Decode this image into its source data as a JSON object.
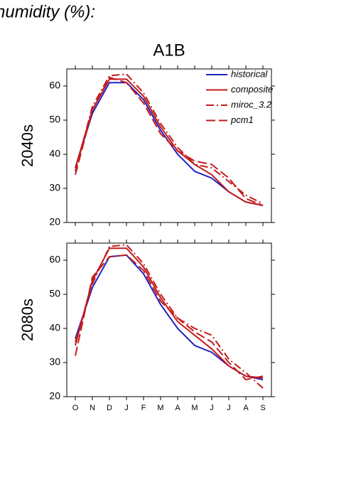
{
  "heading": "humidity (%):",
  "chart_data": [
    {
      "type": "line",
      "title": "A1B",
      "ylabel": "2040s",
      "ylim": [
        20,
        65
      ],
      "yticks": [
        20,
        30,
        40,
        50,
        60
      ],
      "legend": "upper right",
      "series": [
        {
          "name": "historical",
          "color": "#2020c0",
          "dash": "solid",
          "values": [
            36,
            52,
            61,
            61,
            56,
            47,
            40,
            35,
            33,
            29,
            26,
            25
          ]
        },
        {
          "name": "composite",
          "color": "#c41a1a",
          "dash": "solid",
          "values": [
            36,
            53,
            62,
            62,
            57,
            48,
            41,
            37,
            34,
            29,
            26,
            25
          ]
        },
        {
          "name": "miroc_3.2",
          "color": "#c41a1a",
          "dash": "dashdot",
          "values": [
            35,
            54,
            63,
            63.5,
            58,
            49,
            42,
            37,
            36,
            32,
            28,
            25.5
          ]
        },
        {
          "name": "pcm1",
          "color": "#c41a1a",
          "dash": "dashed",
          "values": [
            34,
            53,
            62.5,
            61,
            55,
            46,
            41,
            38,
            37,
            33,
            27,
            25
          ]
        }
      ]
    },
    {
      "type": "line",
      "ylabel": "2080s",
      "categories": [
        "O",
        "N",
        "D",
        "J",
        "F",
        "M",
        "A",
        "M",
        "J",
        "J",
        "A",
        "S"
      ],
      "ylim": [
        20,
        65
      ],
      "yticks": [
        20,
        30,
        40,
        50,
        60
      ],
      "series": [
        {
          "color": "#2020c0",
          "dash": "solid",
          "values": [
            37,
            52,
            61,
            61.5,
            56,
            47,
            40,
            35,
            33,
            29,
            26,
            25
          ]
        },
        {
          "color": "#c41a1a",
          "dash": "solid",
          "values": [
            35,
            54,
            63.5,
            63.5,
            58,
            49,
            42,
            38,
            34,
            29,
            26,
            25.5
          ]
        },
        {
          "color": "#c41a1a",
          "dash": "dashdot",
          "values": [
            36,
            53,
            64,
            64.5,
            59,
            50,
            43,
            40,
            38,
            31,
            27,
            22.5
          ]
        },
        {
          "color": "#c41a1a",
          "dash": "dashed",
          "values": [
            32,
            55,
            61,
            61.5,
            57,
            48,
            43,
            39,
            36,
            30,
            25,
            26
          ]
        }
      ]
    }
  ]
}
